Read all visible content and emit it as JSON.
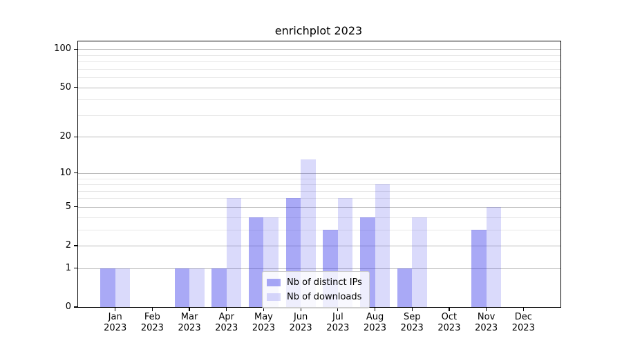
{
  "chart_data": {
    "type": "bar",
    "title": "enrichplot 2023",
    "categories": [
      "Jan",
      "Feb",
      "Mar",
      "Apr",
      "May",
      "Jun",
      "Jul",
      "Aug",
      "Sep",
      "Oct",
      "Nov",
      "Dec"
    ],
    "year": "2023",
    "series": [
      {
        "name": "Nb of distinct IPs",
        "color": "rgba(60,60,235,0.44)",
        "color_hex_on_white": "#a9a9f7",
        "values": [
          1,
          0,
          1,
          1,
          4,
          6,
          3,
          4,
          1,
          0,
          3,
          0
        ]
      },
      {
        "name": "Nb of downloads",
        "color": "rgba(60,60,235,0.19)",
        "color_hex_on_white": "#dadaf8",
        "values": [
          1,
          0,
          1,
          6,
          4,
          13,
          6,
          8,
          4,
          0,
          5,
          0
        ]
      }
    ],
    "xlabel": "",
    "ylabel": "",
    "yscale": "log10(1+x)",
    "ylim": [
      0,
      115
    ],
    "yticks": [
      0,
      1,
      2,
      5,
      10,
      20,
      50,
      100
    ],
    "yminor_gridlines": [
      3,
      4,
      6,
      7,
      8,
      9,
      30,
      40,
      60,
      70,
      80,
      90
    ],
    "grid": "on",
    "legend_position": "lower center",
    "colors": {
      "axis": "#000000",
      "grid_major": "#b9b9b9",
      "grid_minor": "#e8e8e8",
      "background": "#ffffff",
      "legend_bg": "rgba(255,255,255,0.8)",
      "legend_border": "#cccccc"
    }
  }
}
